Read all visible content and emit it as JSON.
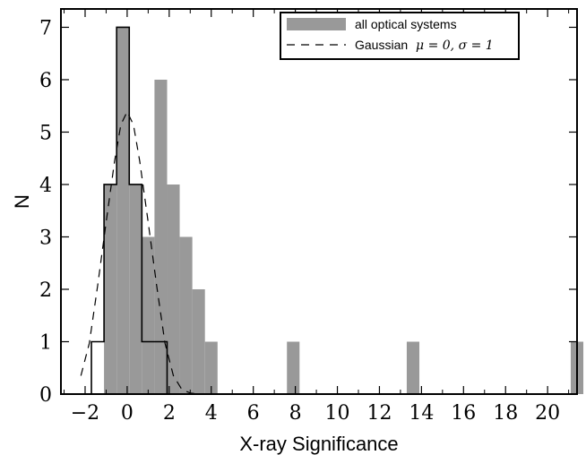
{
  "chart_data": {
    "type": "bar",
    "xlabel": "X-ray Significance",
    "ylabel": "N",
    "xlim": [
      -3.15,
      21.4
    ],
    "ylim": [
      0,
      7.35
    ],
    "xticks": [
      -2,
      0,
      2,
      4,
      6,
      8,
      10,
      12,
      14,
      16,
      18,
      20
    ],
    "xtick_labels": [
      "−2",
      "0",
      "2",
      "4",
      "6",
      "8",
      "10",
      "12",
      "14",
      "16",
      "18",
      "20"
    ],
    "yticks": [
      0,
      1,
      2,
      3,
      4,
      5,
      6,
      7
    ],
    "ytick_labels": [
      "0",
      "1",
      "2",
      "3",
      "4",
      "5",
      "6",
      "7"
    ],
    "legend_position": "top-right",
    "histogram": {
      "name": "all optical systems",
      "color": "#999999",
      "bin_width": 0.6,
      "bins": [
        {
          "x": -1.1,
          "n": 4
        },
        {
          "x": -0.5,
          "n": 7
        },
        {
          "x": 0.1,
          "n": 4
        },
        {
          "x": 0.7,
          "n": 3
        },
        {
          "x": 1.3,
          "n": 6
        },
        {
          "x": 1.9,
          "n": 4
        },
        {
          "x": 2.5,
          "n": 3
        },
        {
          "x": 3.1,
          "n": 2
        },
        {
          "x": 3.7,
          "n": 1
        },
        {
          "x": 7.6,
          "n": 1
        },
        {
          "x": 13.3,
          "n": 1
        },
        {
          "x": 21.1,
          "n": 1
        }
      ]
    },
    "outline_histogram": {
      "bin_edges": [
        -1.7,
        -1.1,
        -0.5,
        0.1,
        0.7,
        1.3,
        1.9
      ],
      "counts": [
        1,
        4,
        7,
        4,
        1,
        1,
        0
      ]
    },
    "gaussian": {
      "name": "Gaussian",
      "math_label": "μ = 0, σ = 1",
      "color": "#000000",
      "x": [
        -2.2,
        -1.8,
        -1.4,
        -1.0,
        -0.6,
        -0.3,
        0.0,
        0.3,
        0.6,
        1.0,
        1.4,
        1.8,
        2.2,
        2.6,
        3.0,
        3.4
      ],
      "y": [
        0.35,
        0.97,
        2.08,
        3.28,
        4.44,
        5.14,
        5.39,
        5.14,
        4.44,
        3.28,
        2.08,
        0.97,
        0.35,
        0.09,
        0.02,
        0.0
      ]
    }
  }
}
